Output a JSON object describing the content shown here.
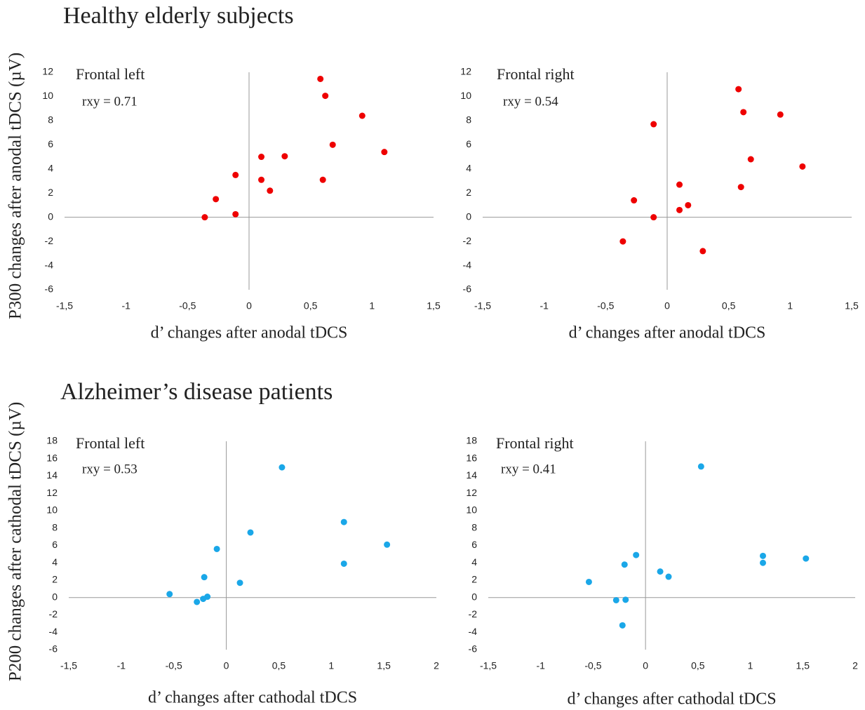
{
  "sections": [
    {
      "title": "Healthy elderly subjects",
      "y_label": "P300 changes after anodal tDCS (µV)"
    },
    {
      "title": "Alzheimer’s disease patients",
      "y_label": "P200 changes after cathodal tDCS (µV)"
    }
  ],
  "chart_data": [
    {
      "type": "scatter",
      "title": "Frontal left",
      "annotation": "rxy = 0.71",
      "x_label": "d’ changes after anodal tDCS",
      "color": "#ee0000",
      "x": [
        -0.36,
        -0.27,
        -0.11,
        -0.11,
        0.1,
        0.1,
        0.17,
        0.29,
        0.58,
        0.62,
        0.6,
        0.68,
        0.92,
        1.1
      ],
      "values": [
        0,
        1.5,
        3.5,
        0.25,
        5.0,
        3.1,
        2.2,
        5.05,
        11.45,
        10.05,
        3.1,
        6.0,
        8.4,
        5.4
      ],
      "xlim": [
        -1.5,
        1.5
      ],
      "xticks": [
        {
          "value": -1.5,
          "label": "-1,5"
        },
        -1,
        {
          "value": -0.5,
          "label": "-0,5"
        },
        0,
        {
          "value": 0.5,
          "label": "0,5"
        },
        1,
        {
          "value": 1.5,
          "label": "1,5"
        }
      ],
      "ylim": [
        -6,
        12
      ],
      "yticks": [
        -6,
        -4,
        -2,
        0,
        2,
        4,
        6,
        8,
        10,
        12
      ]
    },
    {
      "type": "scatter",
      "title": "Frontal right",
      "annotation": "rxy = 0.54",
      "x_label": "d’ changes after anodal tDCS",
      "color": "#ee0000",
      "x": [
        -0.36,
        -0.27,
        -0.11,
        -0.11,
        0.1,
        0.1,
        0.17,
        0.29,
        0.58,
        0.62,
        0.6,
        0.68,
        0.92,
        1.1
      ],
      "values": [
        -2.0,
        1.4,
        7.7,
        0,
        2.7,
        0.6,
        1.0,
        -2.8,
        10.6,
        8.7,
        2.5,
        4.8,
        8.5,
        4.2
      ],
      "xlim": [
        -1.5,
        1.5
      ],
      "xticks": [
        {
          "value": -1.5,
          "label": "-1,5"
        },
        -1,
        {
          "value": -0.5,
          "label": "-0,5"
        },
        0,
        {
          "value": 0.5,
          "label": "0,5"
        },
        1,
        {
          "value": 1.5,
          "label": "1,5"
        }
      ],
      "ylim": [
        -6,
        12
      ],
      "yticks": [
        -6,
        -4,
        -2,
        0,
        2,
        4,
        6,
        8,
        10,
        12
      ]
    },
    {
      "type": "scatter",
      "title": "Frontal left",
      "annotation": "rxy = 0.53",
      "x_label": "d’ changes after cathodal tDCS",
      "color": "#1aa7e8",
      "x": [
        -0.54,
        -0.28,
        -0.22,
        -0.21,
        -0.18,
        -0.09,
        0.13,
        0.23,
        0.53,
        1.12,
        1.12,
        1.53
      ],
      "values": [
        0.4,
        -0.5,
        -0.15,
        2.35,
        0.1,
        5.6,
        1.7,
        7.5,
        15.0,
        8.7,
        3.9,
        6.1
      ],
      "xlim": [
        -1.5,
        2
      ],
      "xticks": [
        {
          "value": -1.5,
          "label": "-1,5"
        },
        -1,
        {
          "value": -0.5,
          "label": "-0,5"
        },
        0,
        {
          "value": 0.5,
          "label": "0,5"
        },
        1,
        {
          "value": 1.5,
          "label": "1,5"
        },
        2
      ],
      "ylim": [
        -6,
        18
      ],
      "yticks": [
        -6,
        -4,
        -2,
        0,
        2,
        4,
        6,
        8,
        10,
        12,
        14,
        16,
        18
      ]
    },
    {
      "type": "scatter",
      "title": "Frontal right",
      "annotation": "rxy = 0.41",
      "x_label": "d’ changes after cathodal tDCS",
      "color": "#1aa7e8",
      "x": [
        -0.54,
        -0.28,
        -0.22,
        -0.2,
        -0.19,
        -0.09,
        0.14,
        0.22,
        0.53,
        1.12,
        1.12,
        1.53
      ],
      "values": [
        1.8,
        -0.3,
        -3.2,
        3.8,
        -0.25,
        4.9,
        3.0,
        2.4,
        15.1,
        4.8,
        4.0,
        4.5
      ],
      "xlim": [
        -1.5,
        2
      ],
      "xticks": [
        {
          "value": -1.5,
          "label": "-1,5"
        },
        -1,
        {
          "value": -0.5,
          "label": "-0,5"
        },
        0,
        {
          "value": 0.5,
          "label": "0,5"
        },
        1,
        {
          "value": 1.5,
          "label": "1,5"
        },
        2
      ],
      "ylim": [
        -6,
        18
      ],
      "yticks": [
        -6,
        -4,
        -2,
        0,
        2,
        4,
        6,
        8,
        10,
        12,
        14,
        16,
        18
      ]
    }
  ]
}
